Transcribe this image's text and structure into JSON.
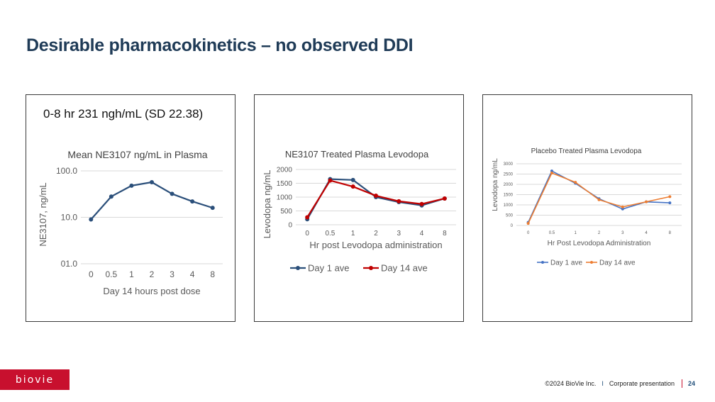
{
  "slide": {
    "title": "Desirable pharmacokinetics – no observed DDI"
  },
  "panel1": {
    "summary": "0-8 hr 231 ngh/mL (SD 22.38)"
  },
  "logo": {
    "text": "bioVie"
  },
  "footer": {
    "copyright": "©2024 BioVie Inc.",
    "separator": "I",
    "section": "Corporate presentation",
    "page": "24"
  },
  "chart_data": [
    {
      "type": "line",
      "title": "Mean NE3107 ng/mL in Plasma",
      "xlabel": "Day 14 hours post dose",
      "ylabel": "NE3107, ng/mL",
      "categories": [
        "0",
        "0.5",
        "1",
        "2",
        "3",
        "4",
        "8"
      ],
      "yscale": "log",
      "ylim": [
        1,
        100
      ],
      "ytick_values": [
        1,
        10,
        100
      ],
      "ytick_labels": [
        "01.0",
        "10.0",
        "100.0"
      ],
      "grid": true,
      "legend": "none",
      "colors": {
        "line": "#2b4f7a",
        "grid": "#d9d9d9",
        "text": "#595959"
      },
      "series": [
        {
          "values": [
            9,
            28,
            48,
            57,
            32,
            22,
            16
          ]
        }
      ]
    },
    {
      "type": "line",
      "title": "NE3107 Treated Plasma Levodopa",
      "xlabel": "Hr post Levodopa administration",
      "ylabel": "Levodopa ng/mL",
      "categories": [
        "0",
        "0.5",
        "1",
        "2",
        "3",
        "4",
        "8"
      ],
      "ylim": [
        0,
        2000
      ],
      "yticks": [
        0,
        500,
        1000,
        1500,
        2000
      ],
      "grid": true,
      "legend": "bottom",
      "colors": {
        "grid": "#d9d9d9",
        "text": "#595959"
      },
      "series": [
        {
          "name": "Day 1 ave",
          "color": "#2b4f7a",
          "values": [
            200,
            1650,
            1620,
            1000,
            820,
            700,
            950
          ]
        },
        {
          "name": "Day 14 ave",
          "color": "#c00000",
          "values": [
            270,
            1600,
            1380,
            1050,
            850,
            750,
            950
          ]
        }
      ]
    },
    {
      "type": "line",
      "title": "Placebo Treated Plasma Levodopa",
      "xlabel": "Hr Post Levodopa Administration",
      "ylabel": "Levodopa ng/mL",
      "categories": [
        "0",
        "0.5",
        "1",
        "2",
        "3",
        "4",
        "8"
      ],
      "ylim": [
        0,
        3000
      ],
      "yticks": [
        0,
        500,
        1000,
        1500,
        2000,
        2500,
        3000
      ],
      "grid": true,
      "legend": "bottom",
      "colors": {
        "grid": "#d9d9d9",
        "text": "#595959"
      },
      "series": [
        {
          "name": "Day 1 ave",
          "color": "#4472c4",
          "values": [
            150,
            2650,
            2050,
            1300,
            800,
            1150,
            1100
          ]
        },
        {
          "name": "Day 14 ave",
          "color": "#ed7d31",
          "values": [
            100,
            2550,
            2100,
            1250,
            900,
            1150,
            1400
          ]
        }
      ]
    }
  ]
}
